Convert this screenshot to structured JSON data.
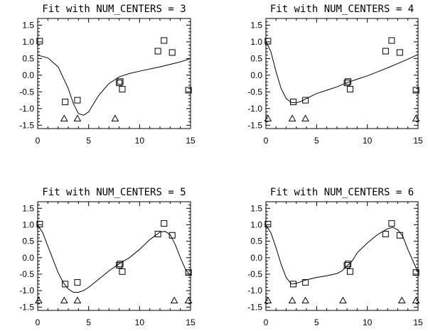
{
  "chart_data": [
    {
      "type": "line",
      "title": "Fit with NUM_CENTERS = 3",
      "xlim": [
        0,
        15
      ],
      "ylim": [
        -1.6,
        1.7
      ],
      "xticks": [
        "0",
        "5",
        "10",
        "15"
      ],
      "yticks": [
        "1.5",
        "1.0",
        "0.5",
        "0.0",
        "-0.5",
        "-1.0",
        "-1.5"
      ],
      "grid": false,
      "series": [
        {
          "marker": "square",
          "x": [
            0.2,
            2.7,
            3.9,
            8.0,
            8.1,
            8.3,
            11.8,
            12.4,
            13.2,
            14.8
          ],
          "y": [
            1.02,
            -0.8,
            -0.75,
            -0.23,
            -0.19,
            -0.42,
            0.72,
            1.04,
            0.68,
            -0.45
          ]
        },
        {
          "marker": "triangle",
          "x": [
            2.6,
            3.9,
            7.6
          ],
          "y": [
            -1.3,
            -1.3,
            -1.3
          ]
        },
        {
          "marker": "none",
          "x": [
            0,
            1,
            2,
            3,
            3.5,
            4,
            4.5,
            5,
            5.5,
            6,
            7,
            8,
            9,
            10,
            12,
            14,
            15
          ],
          "y": [
            0.6,
            0.52,
            0.25,
            -0.4,
            -0.85,
            -1.15,
            -1.2,
            -1.1,
            -0.85,
            -0.6,
            -0.25,
            -0.05,
            0.05,
            0.12,
            0.25,
            0.4,
            0.5
          ]
        }
      ]
    },
    {
      "type": "line",
      "title": "Fit with NUM_CENTERS = 4",
      "xlim": [
        0,
        15
      ],
      "ylim": [
        -1.6,
        1.7
      ],
      "xticks": [
        "0",
        "5",
        "10",
        "15"
      ],
      "yticks": [
        "1.5",
        "1.0",
        "0.5",
        "0.0",
        "-0.5",
        "-1.0",
        "-1.5"
      ],
      "grid": false,
      "series": [
        {
          "marker": "square",
          "x": [
            0.2,
            2.7,
            3.9,
            8.0,
            8.1,
            8.3,
            11.8,
            12.4,
            13.2,
            14.8
          ],
          "y": [
            1.02,
            -0.8,
            -0.75,
            -0.23,
            -0.19,
            -0.42,
            0.72,
            1.04,
            0.68,
            -0.45
          ]
        },
        {
          "marker": "triangle",
          "x": [
            0.2,
            2.6,
            3.9,
            14.8
          ],
          "y": [
            -1.3,
            -1.3,
            -1.3,
            -1.3
          ]
        },
        {
          "marker": "none",
          "x": [
            0,
            0.5,
            1,
            1.5,
            2,
            2.5,
            3,
            3.5,
            4,
            5,
            6,
            7,
            8,
            9,
            10,
            11,
            12,
            13,
            14,
            15
          ],
          "y": [
            1.02,
            0.7,
            0.1,
            -0.4,
            -0.7,
            -0.82,
            -0.83,
            -0.78,
            -0.7,
            -0.55,
            -0.45,
            -0.35,
            -0.22,
            -0.12,
            -0.02,
            0.1,
            0.22,
            0.35,
            0.48,
            0.62
          ]
        }
      ]
    },
    {
      "type": "line",
      "title": "Fit with NUM_CENTERS = 5",
      "xlim": [
        0,
        15
      ],
      "ylim": [
        -1.6,
        1.7
      ],
      "xticks": [
        "0",
        "5",
        "10",
        "15"
      ],
      "yticks": [
        "1.5",
        "1.0",
        "0.5",
        "0.0",
        "-0.5",
        "-1.0",
        "-1.5"
      ],
      "grid": false,
      "series": [
        {
          "marker": "square",
          "x": [
            0.2,
            2.7,
            3.9,
            8.0,
            8.1,
            8.3,
            11.8,
            12.4,
            13.2,
            14.8
          ],
          "y": [
            1.02,
            -0.8,
            -0.75,
            -0.23,
            -0.19,
            -0.42,
            0.72,
            1.04,
            0.68,
            -0.45
          ]
        },
        {
          "marker": "triangle",
          "x": [
            0.1,
            2.6,
            3.9,
            13.4,
            14.8
          ],
          "y": [
            -1.3,
            -1.3,
            -1.3,
            -1.3,
            -1.3
          ]
        },
        {
          "marker": "none",
          "x": [
            0,
            0.5,
            1,
            1.5,
            2,
            2.5,
            3,
            3.5,
            4,
            4.5,
            5,
            6,
            7,
            8,
            9,
            10,
            11,
            12,
            12.5,
            13,
            13.5,
            14,
            14.5,
            15
          ],
          "y": [
            1.0,
            0.75,
            0.35,
            -0.05,
            -0.45,
            -0.75,
            -0.95,
            -1.05,
            -1.05,
            -1.0,
            -0.9,
            -0.65,
            -0.4,
            -0.18,
            0.0,
            0.25,
            0.55,
            0.78,
            0.8,
            0.7,
            0.4,
            0.0,
            -0.35,
            -0.55
          ]
        }
      ]
    },
    {
      "type": "line",
      "title": "Fit with NUM_CENTERS = 6",
      "xlim": [
        0,
        15
      ],
      "ylim": [
        -1.6,
        1.7
      ],
      "xticks": [
        "0",
        "5",
        "10",
        "15"
      ],
      "yticks": [
        "1.5",
        "1.0",
        "0.5",
        "0.0",
        "-0.5",
        "-1.0",
        "-1.5"
      ],
      "grid": false,
      "series": [
        {
          "marker": "square",
          "x": [
            0.2,
            2.7,
            3.9,
            8.0,
            8.1,
            8.3,
            11.8,
            12.4,
            13.2,
            14.8
          ],
          "y": [
            1.02,
            -0.8,
            -0.75,
            -0.23,
            -0.19,
            -0.42,
            0.72,
            1.04,
            0.68,
            -0.45
          ]
        },
        {
          "marker": "triangle",
          "x": [
            0.2,
            2.6,
            3.9,
            7.6,
            13.4,
            14.8
          ],
          "y": [
            -1.3,
            -1.3,
            -1.3,
            -1.3,
            -1.3,
            -1.3
          ]
        },
        {
          "marker": "none",
          "x": [
            0,
            0.5,
            1,
            1.5,
            2,
            2.5,
            3,
            3.5,
            4,
            5,
            6,
            7,
            7.5,
            8,
            8.5,
            9,
            10,
            11,
            12,
            12.5,
            13,
            13.5,
            14,
            14.5,
            15
          ],
          "y": [
            1.0,
            0.75,
            0.3,
            -0.2,
            -0.6,
            -0.8,
            -0.78,
            -0.72,
            -0.67,
            -0.6,
            -0.55,
            -0.48,
            -0.4,
            -0.25,
            -0.1,
            0.15,
            0.45,
            0.7,
            0.88,
            0.92,
            0.85,
            0.65,
            0.25,
            -0.1,
            -0.45
          ]
        }
      ]
    }
  ]
}
